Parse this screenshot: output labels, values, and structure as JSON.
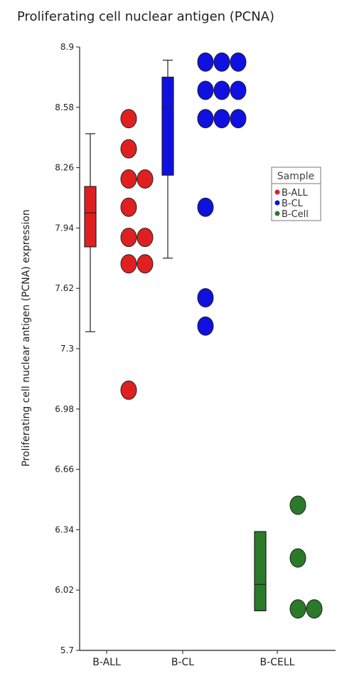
{
  "chart_data": {
    "type": "box-dot",
    "title": "Proliferating cell nuclear antigen (PCNA)",
    "ylabel": "Proliferating cell nuclear antigen (PCNA) expression",
    "xlabel": "",
    "ylim": [
      5.7,
      8.9
    ],
    "yticks": [
      "8.9",
      "8.58",
      "8.26",
      "7.94",
      "7.62",
      "7.3",
      "6.98",
      "6.66",
      "6.34",
      "6.02",
      "5.7"
    ],
    "categories": [
      "B-ALL",
      "B-CL",
      "B-CELL"
    ],
    "grid": false,
    "legend": {
      "title": "Sample",
      "position": "right",
      "entries": [
        {
          "label": "B-ALL",
          "color": "#e02020"
        },
        {
          "label": "B-CL",
          "color": "#1010e0"
        },
        {
          "label": "B-Cell",
          "color": "#2a7a2a"
        }
      ]
    },
    "groups": [
      {
        "category": "B-ALL",
        "color": "#e02020",
        "box": {
          "whisker_low": 7.39,
          "q1": 7.84,
          "median": 8.02,
          "q3": 8.16,
          "whisker_high": 8.44
        },
        "points": [
          {
            "y": 8.52,
            "col": 0
          },
          {
            "y": 8.36,
            "col": 0
          },
          {
            "y": 8.2,
            "col": 0
          },
          {
            "y": 8.2,
            "col": 1
          },
          {
            "y": 8.05,
            "col": 0
          },
          {
            "y": 7.89,
            "col": 0
          },
          {
            "y": 7.89,
            "col": 1
          },
          {
            "y": 7.75,
            "col": 0
          },
          {
            "y": 7.75,
            "col": 1
          },
          {
            "y": 7.08,
            "col": 0
          }
        ]
      },
      {
        "category": "B-CL",
        "color": "#1010e0",
        "box": {
          "whisker_low": 7.78,
          "q1": 8.22,
          "median": 8.58,
          "q3": 8.74,
          "whisker_high": 8.83
        },
        "points": [
          {
            "y": 8.82,
            "col": 0
          },
          {
            "y": 8.82,
            "col": 1
          },
          {
            "y": 8.82,
            "col": 2
          },
          {
            "y": 8.67,
            "col": 0
          },
          {
            "y": 8.67,
            "col": 1
          },
          {
            "y": 8.67,
            "col": 2
          },
          {
            "y": 8.52,
            "col": 0
          },
          {
            "y": 8.52,
            "col": 1
          },
          {
            "y": 8.52,
            "col": 2
          },
          {
            "y": 8.05,
            "col": 0
          },
          {
            "y": 7.57,
            "col": 0
          },
          {
            "y": 7.42,
            "col": 0
          }
        ]
      },
      {
        "category": "B-CELL",
        "color": "#2a7a2a",
        "box": {
          "whisker_low": 5.91,
          "q1": 5.91,
          "median": 6.05,
          "q3": 6.33,
          "whisker_high": 6.33
        },
        "points": [
          {
            "y": 6.47,
            "col": 0
          },
          {
            "y": 6.19,
            "col": 0
          },
          {
            "y": 5.92,
            "col": 0
          },
          {
            "y": 5.92,
            "col": 1
          }
        ]
      }
    ]
  }
}
